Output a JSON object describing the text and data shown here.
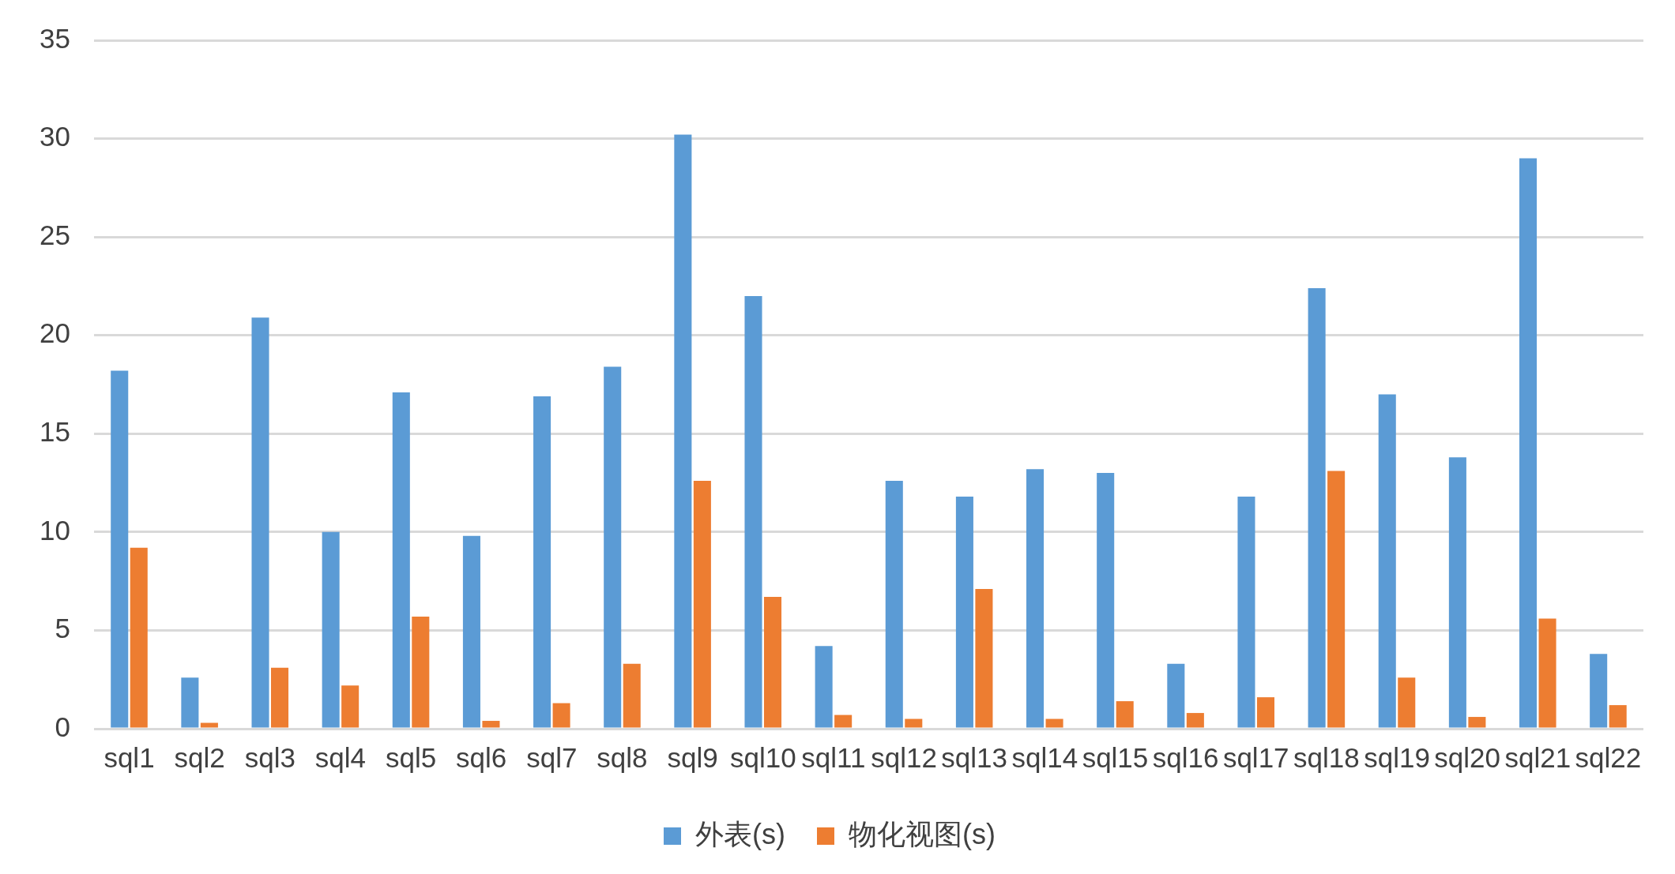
{
  "chart_data": {
    "type": "bar",
    "categories": [
      "sql1",
      "sql2",
      "sql3",
      "sql4",
      "sql5",
      "sql6",
      "sql7",
      "sql8",
      "sql9",
      "sql10",
      "sql11",
      "sql12",
      "sql13",
      "sql14",
      "sql15",
      "sql16",
      "sql17",
      "sql18",
      "sql19",
      "sql20",
      "sql21",
      "sql22"
    ],
    "series": [
      {
        "name": "外表(s)",
        "color": "#5b9bd5",
        "values": [
          18.2,
          2.6,
          20.9,
          10.0,
          17.1,
          9.8,
          16.9,
          18.4,
          30.2,
          22.0,
          4.2,
          12.6,
          11.8,
          13.2,
          13.0,
          3.3,
          11.8,
          22.4,
          17.0,
          13.8,
          29.0,
          3.8
        ]
      },
      {
        "name": "物化视图(s)",
        "color": "#ed7d31",
        "values": [
          9.2,
          0.3,
          3.1,
          2.2,
          5.7,
          0.4,
          1.3,
          3.3,
          12.6,
          6.7,
          0.7,
          0.5,
          7.1,
          0.5,
          1.4,
          0.8,
          1.6,
          13.1,
          2.6,
          0.6,
          5.6,
          1.2
        ]
      }
    ],
    "ylim": [
      0,
      35
    ],
    "yticks": [
      0,
      5,
      10,
      15,
      20,
      25,
      30,
      35
    ],
    "grid": "y",
    "legend": "bottom"
  }
}
